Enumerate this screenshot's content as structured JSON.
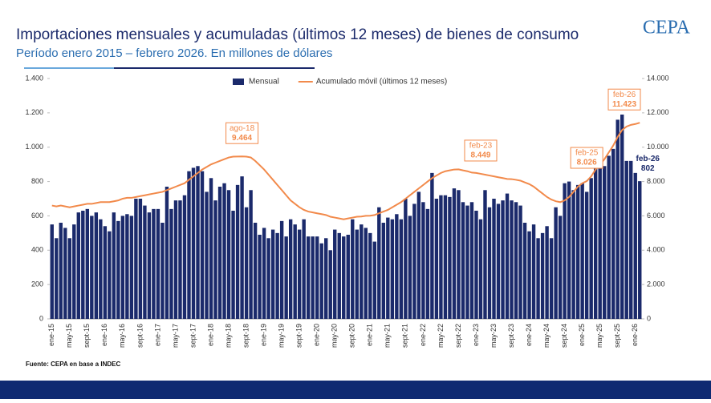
{
  "chart_data": {
    "type": "bar_line",
    "title": "Importaciones mensuales y acumuladas (últimos 12 meses) de bienes de consumo",
    "subtitle": "Período enero 2015 – febrero 2026. En millones de dólares",
    "source": "Fuente: CEPA en base a INDEC",
    "logo": "CEPA",
    "categories": [
      "ene-15",
      null,
      null,
      null,
      "may-15",
      null,
      null,
      null,
      "sept-15",
      null,
      null,
      null,
      "ene-16",
      null,
      null,
      null,
      "may-16",
      null,
      null,
      null,
      "sept-16",
      null,
      null,
      null,
      "ene-17",
      null,
      null,
      null,
      "may-17",
      null,
      null,
      null,
      "sept-17",
      null,
      null,
      null,
      "ene-18",
      null,
      null,
      null,
      "may-18",
      null,
      null,
      null,
      "sept-18",
      null,
      null,
      null,
      "ene-19",
      null,
      null,
      null,
      "may-19",
      null,
      null,
      null,
      "sept-19",
      null,
      null,
      null,
      "ene-20",
      null,
      null,
      null,
      "may-20",
      null,
      null,
      null,
      "sept-20",
      null,
      null,
      null,
      "ene-21",
      null,
      null,
      null,
      "may-21",
      null,
      null,
      null,
      "sept-21",
      null,
      null,
      null,
      "ene-22",
      null,
      null,
      null,
      "may-22",
      null,
      null,
      null,
      "sept-22",
      null,
      null,
      null,
      "ene-23",
      null,
      null,
      null,
      "may-23",
      null,
      null,
      null,
      "sept-23",
      null,
      null,
      null,
      "ene-24",
      null,
      null,
      null,
      "may-24",
      null,
      null,
      null,
      "sept-24",
      null,
      null,
      null,
      "ene-25",
      null,
      null,
      null,
      "may-25",
      null,
      null,
      null,
      "sept-25",
      null,
      null,
      null,
      "ene-26",
      null
    ],
    "series": [
      {
        "name": "Mensual",
        "color": "#1b2a6b",
        "axis": "y",
        "values": [
          550,
          470,
          560,
          530,
          470,
          550,
          620,
          630,
          640,
          600,
          620,
          580,
          540,
          510,
          620,
          570,
          600,
          610,
          600,
          700,
          700,
          660,
          620,
          640,
          640,
          560,
          770,
          640,
          690,
          690,
          720,
          860,
          880,
          890,
          860,
          740,
          820,
          690,
          770,
          790,
          750,
          630,
          780,
          830,
          650,
          750,
          560,
          490,
          530,
          470,
          520,
          500,
          570,
          480,
          580,
          550,
          520,
          580,
          480,
          480,
          480,
          440,
          470,
          400,
          520,
          500,
          480,
          490,
          580,
          520,
          550,
          530,
          500,
          450,
          650,
          560,
          590,
          580,
          610,
          580,
          700,
          600,
          670,
          740,
          680,
          640,
          850,
          700,
          720,
          720,
          710,
          760,
          750,
          680,
          660,
          680,
          630,
          580,
          750,
          650,
          700,
          670,
          690,
          730,
          690,
          680,
          660,
          560,
          510,
          550,
          470,
          500,
          540,
          470,
          650,
          600,
          790,
          800,
          750,
          780,
          790,
          740,
          820,
          970,
          900,
          890,
          950,
          990,
          1160,
          1190,
          920,
          920,
          850,
          802
        ],
        "annotations": [
          {
            "label": "feb-26",
            "value": 802
          }
        ]
      },
      {
        "name": "Acumulado móvil (últimos 12 meses)",
        "color": "#f28a4b",
        "axis": "y2",
        "values": [
          6600,
          6550,
          6600,
          6550,
          6500,
          6550,
          6600,
          6650,
          6700,
          6700,
          6750,
          6800,
          6800,
          6800,
          6850,
          6900,
          7000,
          7050,
          7050,
          7100,
          7150,
          7200,
          7250,
          7300,
          7350,
          7400,
          7500,
          7600,
          7700,
          7800,
          7900,
          8100,
          8300,
          8500,
          8700,
          8850,
          9000,
          9100,
          9200,
          9300,
          9400,
          9450,
          9455,
          9464,
          9450,
          9400,
          9200,
          8950,
          8700,
          8400,
          8100,
          7800,
          7500,
          7200,
          6900,
          6700,
          6500,
          6350,
          6250,
          6200,
          6150,
          6100,
          6050,
          5950,
          5900,
          5850,
          5800,
          5850,
          5900,
          5950,
          5960,
          6000,
          6010,
          6050,
          6150,
          6250,
          6350,
          6500,
          6650,
          6800,
          7000,
          7200,
          7400,
          7600,
          7800,
          8000,
          8200,
          8350,
          8500,
          8600,
          8650,
          8700,
          8710,
          8650,
          8600,
          8520,
          8500,
          8449,
          8400,
          8350,
          8300,
          8250,
          8200,
          8150,
          8140,
          8100,
          8050,
          7950,
          7850,
          7700,
          7500,
          7300,
          7100,
          6950,
          6850,
          6800,
          6900,
          7100,
          7400,
          7700,
          7900,
          8026,
          8300,
          8700,
          9000,
          9300,
          9700,
          10100,
          10600,
          11000,
          11200,
          11300,
          11350,
          11423
        ],
        "annotations": [
          {
            "label": "ago-18",
            "value": 9464,
            "value_label": "9.464"
          },
          {
            "label": "feb-23",
            "value": 8449,
            "value_label": "8.449"
          },
          {
            "label": "feb-25",
            "value": 8026,
            "value_label": "8.026"
          },
          {
            "label": "feb-26",
            "value": 11423,
            "value_label": "11.423"
          }
        ]
      }
    ],
    "ylim": [
      0,
      1400
    ],
    "yticks": [
      0,
      200,
      400,
      600,
      800,
      {
        "value": 1000,
        "label": "1.000"
      },
      {
        "value": 1200,
        "label": "1.200"
      },
      {
        "value": 1400,
        "label": "1.400"
      }
    ],
    "y2lim": [
      0,
      14000
    ],
    "y2ticks": [
      0,
      {
        "value": 2000,
        "label": "2.000"
      },
      {
        "value": 4000,
        "label": "4.000"
      },
      {
        "value": 6000,
        "label": "6.000"
      },
      {
        "value": 8000,
        "label": "8.000"
      },
      {
        "value": 10000,
        "label": "10.000"
      },
      {
        "value": 12000,
        "label": "12.000"
      },
      {
        "value": 14000,
        "label": "14.000"
      }
    ],
    "legend": "top"
  }
}
